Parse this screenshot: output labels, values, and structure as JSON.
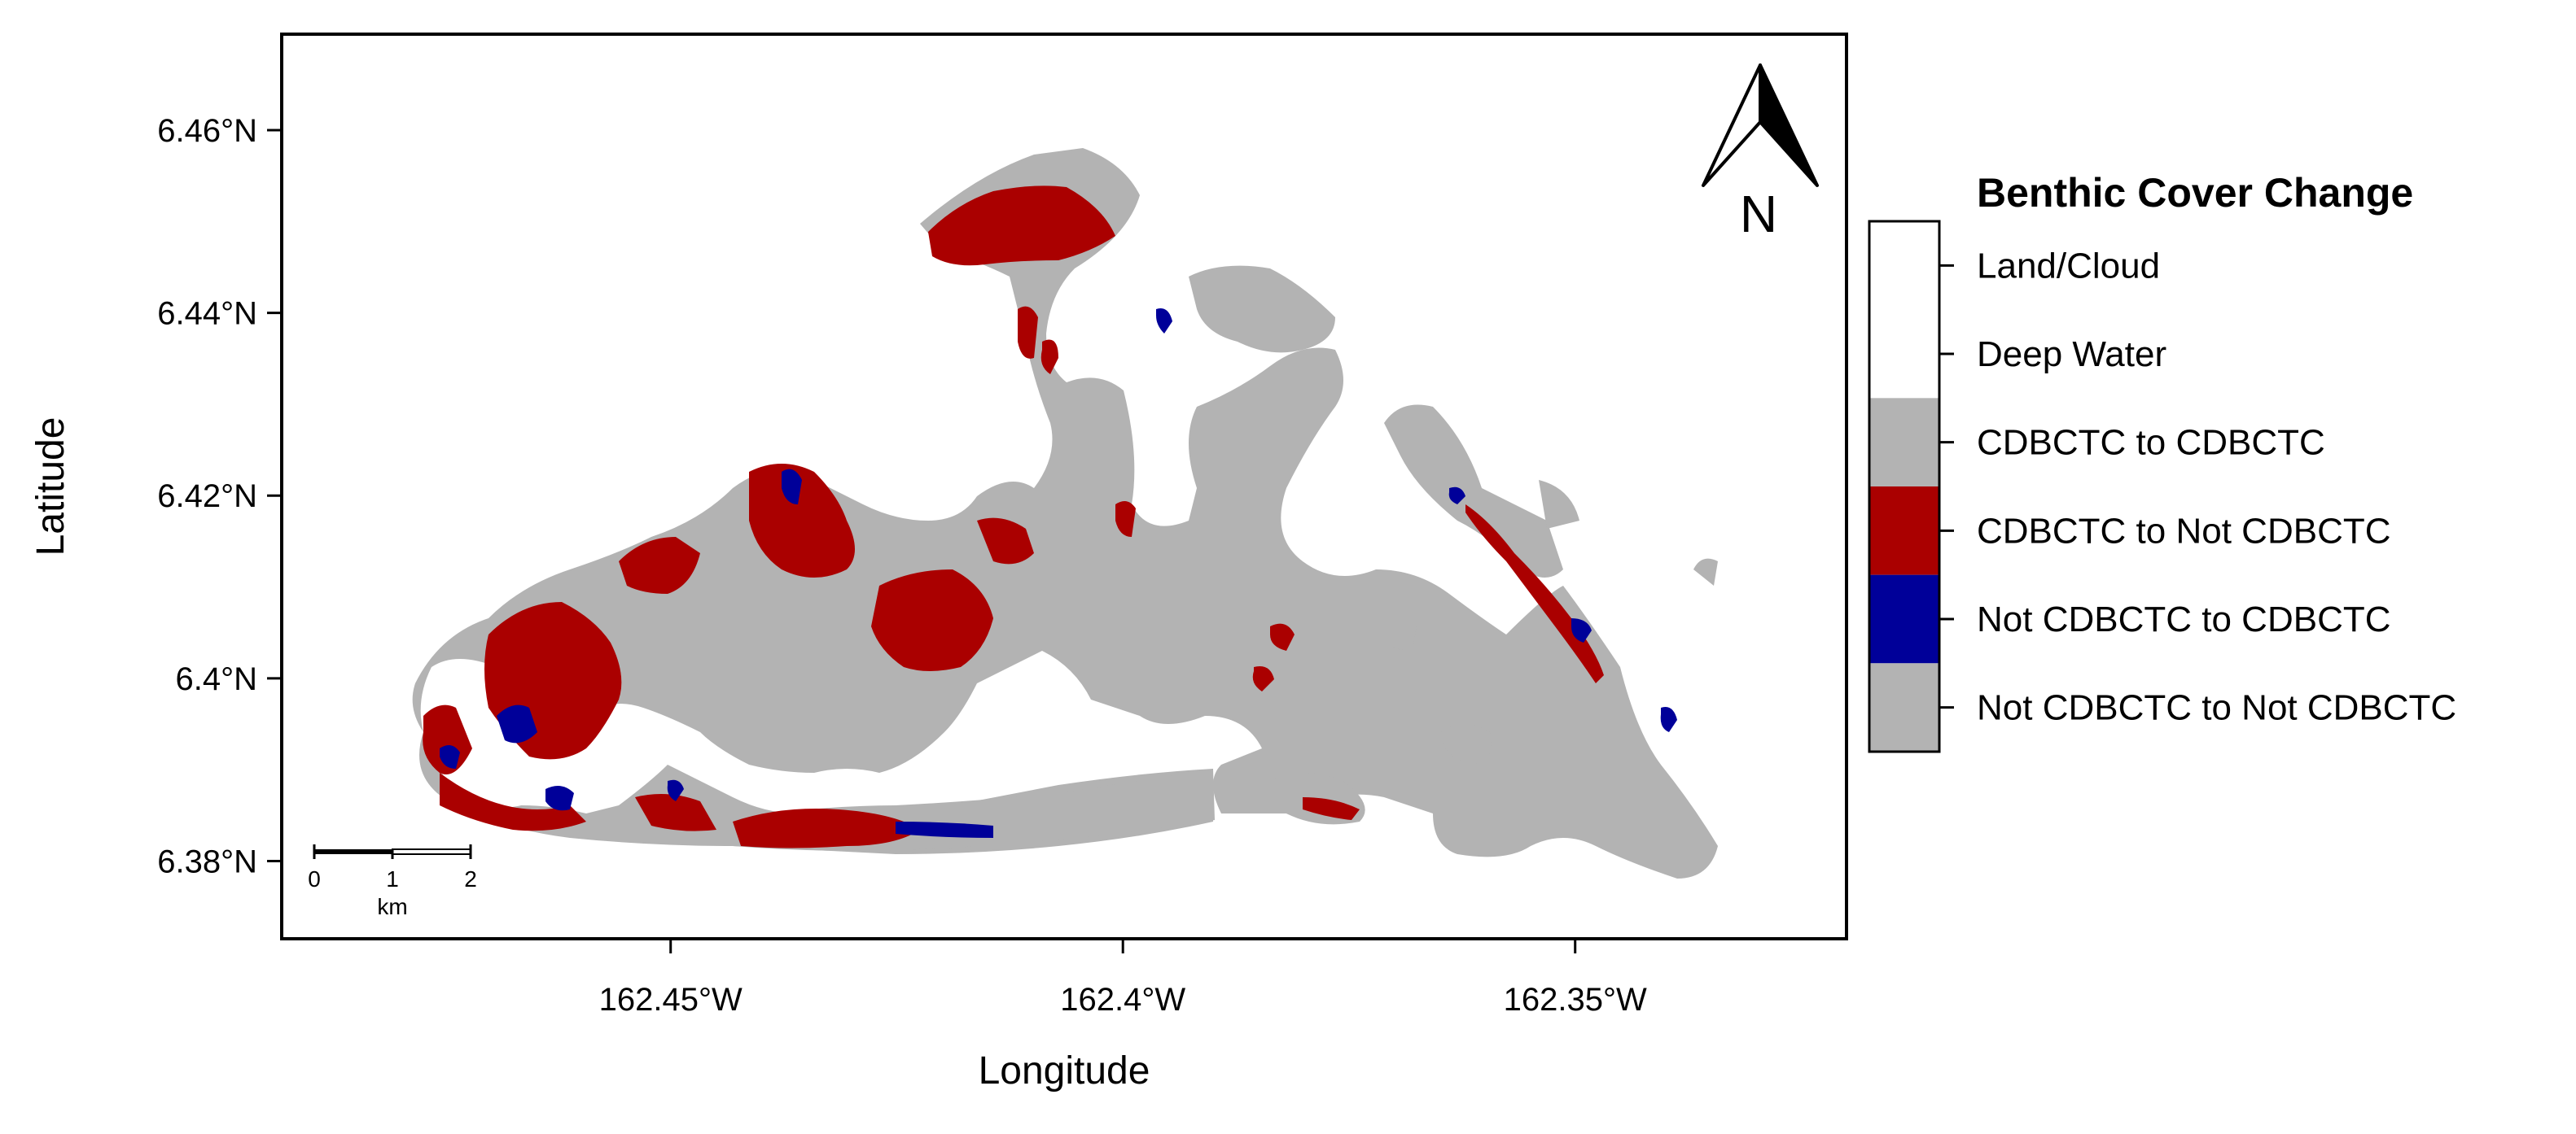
{
  "map": {
    "x_axis": {
      "title": "Longitude",
      "ticks": [
        {
          "value": -162.45,
          "label": "162.45°W"
        },
        {
          "value": -162.4,
          "label": "162.4°W"
        },
        {
          "value": -162.35,
          "label": "162.35°W"
        }
      ],
      "range": [
        -162.493,
        -162.32
      ]
    },
    "y_axis": {
      "title": "Latitude",
      "ticks": [
        {
          "value": 6.46,
          "label": "6.46°N"
        },
        {
          "value": 6.44,
          "label": "6.44°N"
        },
        {
          "value": 6.42,
          "label": "6.42°N"
        },
        {
          "value": 6.4,
          "label": "6.4°N"
        },
        {
          "value": 6.38,
          "label": "6.38°N"
        }
      ],
      "range": [
        6.3715,
        6.4705
      ]
    },
    "north_arrow": {
      "label": "N"
    },
    "scale_bar": {
      "ticks": [
        "0",
        "1",
        "2"
      ],
      "unit": "km"
    }
  },
  "legend": {
    "title": "Benthic Cover Change",
    "items": [
      {
        "label": "Land/Cloud",
        "color": "#ffffff"
      },
      {
        "label": "Deep Water",
        "color": "#ffffff"
      },
      {
        "label": "CDBCTC to CDBCTC",
        "color": "#b3b3b3"
      },
      {
        "label": "CDBCTC to Not CDBCTC",
        "color": "#aa0000"
      },
      {
        "label": "Not CDBCTC to CDBCTC",
        "color": "#000099"
      },
      {
        "label": "Not CDBCTC to Not CDBCTC",
        "color": "#b3b3b3"
      }
    ]
  },
  "colors": {
    "gray": "#b3b3b3",
    "red": "#aa0000",
    "blue": "#000099"
  }
}
